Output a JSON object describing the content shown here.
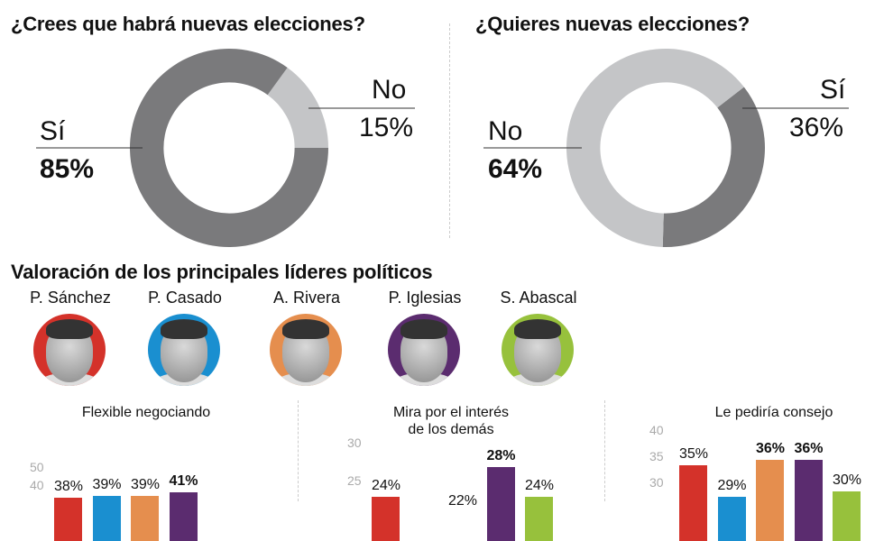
{
  "colors": {
    "dark_gray": "#7a7a7c",
    "light_gray": "#c4c5c7",
    "sanchez": "#d4322a",
    "casado": "#1a8fd0",
    "rivera": "#e58e4e",
    "iglesias": "#5b2c6f",
    "abascal": "#97c13c"
  },
  "chart_data": [
    {
      "type": "pie",
      "title": "¿Crees que habrá nuevas elecciones?",
      "slices": [
        {
          "label": "Sí",
          "value": 85,
          "display": "85%"
        },
        {
          "label": "No",
          "value": 15,
          "display": "15%"
        }
      ]
    },
    {
      "type": "pie",
      "title": "¿Quieres nuevas elecciones?",
      "slices": [
        {
          "label": "Sí",
          "value": 36,
          "display": "36%"
        },
        {
          "label": "No",
          "value": 64,
          "display": "64%"
        }
      ]
    },
    {
      "type": "bar",
      "title": "Valoración de los principales líderes políticos",
      "leaders": [
        "P. Sánchez",
        "P. Casado",
        "A. Rivera",
        "P. Iglesias",
        "S. Abascal"
      ],
      "panels": [
        {
          "title": "Flexible negociando",
          "ticks": [
            "50",
            "40"
          ],
          "yticks": [
            50,
            40
          ],
          "values": [
            38,
            39,
            39,
            41,
            null
          ],
          "labels": [
            "38%",
            "39%",
            "39%",
            "41%",
            ""
          ],
          "bold": [
            false,
            false,
            false,
            true,
            false
          ]
        },
        {
          "title_lines": [
            "Mira por el interés",
            "de los demás"
          ],
          "ticks": [
            "30",
            "25"
          ],
          "yticks": [
            30,
            25
          ],
          "values": [
            24,
            null,
            22,
            28,
            24
          ],
          "labels": [
            "24%",
            "",
            "22%",
            "28%",
            "24%"
          ],
          "bold": [
            false,
            false,
            false,
            true,
            false
          ]
        },
        {
          "title": "Le pediría consejo",
          "ticks": [
            "40",
            "35",
            "30"
          ],
          "yticks": [
            40,
            35,
            30
          ],
          "values": [
            35,
            29,
            36,
            36,
            30
          ],
          "labels": [
            "35%",
            "29%",
            "36%",
            "36%",
            "30%"
          ],
          "bold": [
            false,
            false,
            true,
            true,
            false
          ]
        }
      ]
    }
  ]
}
